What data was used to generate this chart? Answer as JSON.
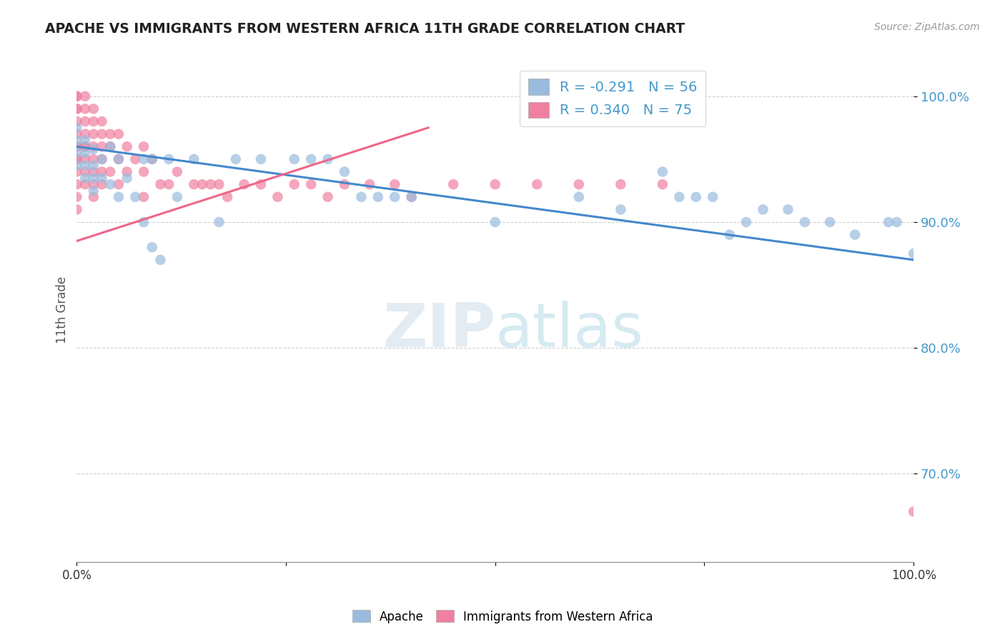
{
  "title": "APACHE VS IMMIGRANTS FROM WESTERN AFRICA 11TH GRADE CORRELATION CHART",
  "source_text": "Source: ZipAtlas.com",
  "ylabel": "11th Grade",
  "xlim": [
    0.0,
    1.0
  ],
  "ylim": [
    0.63,
    1.03
  ],
  "yticks": [
    0.7,
    0.8,
    0.9,
    1.0
  ],
  "ytick_labels": [
    "70.0%",
    "80.0%",
    "90.0%",
    "100.0%"
  ],
  "legend_entries": [
    {
      "label": "R = -0.291   N = 56",
      "color": "#a8c8e8"
    },
    {
      "label": "R = 0.340   N = 75",
      "color": "#f4a0b0"
    }
  ],
  "apache_color": "#99bbdd",
  "immigrant_color": "#f080a0",
  "apache_line_color": "#4488cc",
  "immigrant_line_color": "#ee6688",
  "apache_scatter_x": [
    0.0,
    0.0,
    0.0,
    0.0,
    0.01,
    0.01,
    0.01,
    0.01,
    0.02,
    0.02,
    0.02,
    0.02,
    0.03,
    0.03,
    0.04,
    0.04,
    0.05,
    0.05,
    0.06,
    0.07,
    0.08,
    0.08,
    0.09,
    0.09,
    0.1,
    0.11,
    0.12,
    0.14,
    0.17,
    0.19,
    0.22,
    0.26,
    0.28,
    0.3,
    0.32,
    0.34,
    0.36,
    0.38,
    0.4,
    0.5,
    0.6,
    0.65,
    0.7,
    0.72,
    0.74,
    0.76,
    0.78,
    0.8,
    0.82,
    0.85,
    0.87,
    0.9,
    0.93,
    0.97,
    0.98,
    1.0
  ],
  "apache_scatter_y": [
    0.975,
    0.965,
    0.955,
    0.945,
    0.965,
    0.955,
    0.945,
    0.935,
    0.958,
    0.945,
    0.935,
    0.925,
    0.95,
    0.935,
    0.96,
    0.93,
    0.95,
    0.92,
    0.935,
    0.92,
    0.95,
    0.9,
    0.95,
    0.88,
    0.87,
    0.95,
    0.92,
    0.95,
    0.9,
    0.95,
    0.95,
    0.95,
    0.95,
    0.95,
    0.94,
    0.92,
    0.92,
    0.92,
    0.92,
    0.9,
    0.92,
    0.91,
    0.94,
    0.92,
    0.92,
    0.92,
    0.89,
    0.9,
    0.91,
    0.91,
    0.9,
    0.9,
    0.89,
    0.9,
    0.9,
    0.875
  ],
  "immigrant_scatter_x": [
    0.0,
    0.0,
    0.0,
    0.0,
    0.0,
    0.0,
    0.0,
    0.0,
    0.0,
    0.0,
    0.0,
    0.0,
    0.0,
    0.0,
    0.01,
    0.01,
    0.01,
    0.01,
    0.01,
    0.01,
    0.01,
    0.01,
    0.01,
    0.02,
    0.02,
    0.02,
    0.02,
    0.02,
    0.02,
    0.02,
    0.02,
    0.03,
    0.03,
    0.03,
    0.03,
    0.03,
    0.03,
    0.04,
    0.04,
    0.04,
    0.05,
    0.05,
    0.05,
    0.06,
    0.06,
    0.07,
    0.08,
    0.08,
    0.08,
    0.09,
    0.1,
    0.11,
    0.12,
    0.14,
    0.15,
    0.16,
    0.17,
    0.18,
    0.2,
    0.22,
    0.24,
    0.26,
    0.28,
    0.3,
    0.32,
    0.35,
    0.38,
    0.4,
    0.45,
    0.5,
    0.55,
    0.6,
    0.65,
    0.7,
    1.0
  ],
  "immigrant_scatter_y": [
    1.0,
    1.0,
    0.99,
    0.99,
    0.98,
    0.97,
    0.96,
    0.96,
    0.95,
    0.95,
    0.94,
    0.93,
    0.92,
    0.91,
    1.0,
    0.99,
    0.98,
    0.97,
    0.96,
    0.96,
    0.95,
    0.94,
    0.93,
    0.99,
    0.98,
    0.97,
    0.96,
    0.95,
    0.94,
    0.93,
    0.92,
    0.98,
    0.97,
    0.96,
    0.95,
    0.94,
    0.93,
    0.97,
    0.96,
    0.94,
    0.97,
    0.95,
    0.93,
    0.96,
    0.94,
    0.95,
    0.96,
    0.94,
    0.92,
    0.95,
    0.93,
    0.93,
    0.94,
    0.93,
    0.93,
    0.93,
    0.93,
    0.92,
    0.93,
    0.93,
    0.92,
    0.93,
    0.93,
    0.92,
    0.93,
    0.93,
    0.93,
    0.92,
    0.93,
    0.93,
    0.93,
    0.93,
    0.93,
    0.93,
    0.67
  ],
  "apache_trend_x0": 0.0,
  "apache_trend_x1": 1.0,
  "apache_trend_y0": 0.96,
  "apache_trend_y1": 0.87,
  "immigrant_trend_x0": 0.0,
  "immigrant_trend_x1": 0.42,
  "immigrant_trend_y0": 0.885,
  "immigrant_trend_y1": 0.975
}
